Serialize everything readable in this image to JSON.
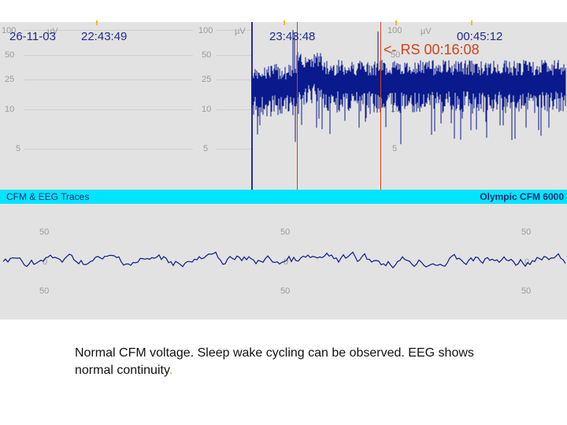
{
  "cfm": {
    "axis_ticks": [
      "100",
      "50",
      "25",
      "10",
      "5"
    ],
    "unit": "µV",
    "date": "26-11-03",
    "times": [
      "22:43:49",
      "23:43:48",
      "00:45:12"
    ],
    "event_label": "<- RS 00:16:08",
    "colors": {
      "background": "#e2e2e2",
      "trace": "#0a1a8c",
      "marker": "#d0421a",
      "flag": "#f2c000"
    }
  },
  "title_bar": {
    "left": "CFM & EEG Traces",
    "right": "Olympic CFM 6000",
    "color": "#00e5ff"
  },
  "eeg": {
    "labels": [
      "50",
      "0",
      "50"
    ]
  },
  "caption": {
    "text": "Normal CFM voltage. Sleep wake cycling can be observed. EEG shows normal continuity",
    "end_mark": "."
  }
}
